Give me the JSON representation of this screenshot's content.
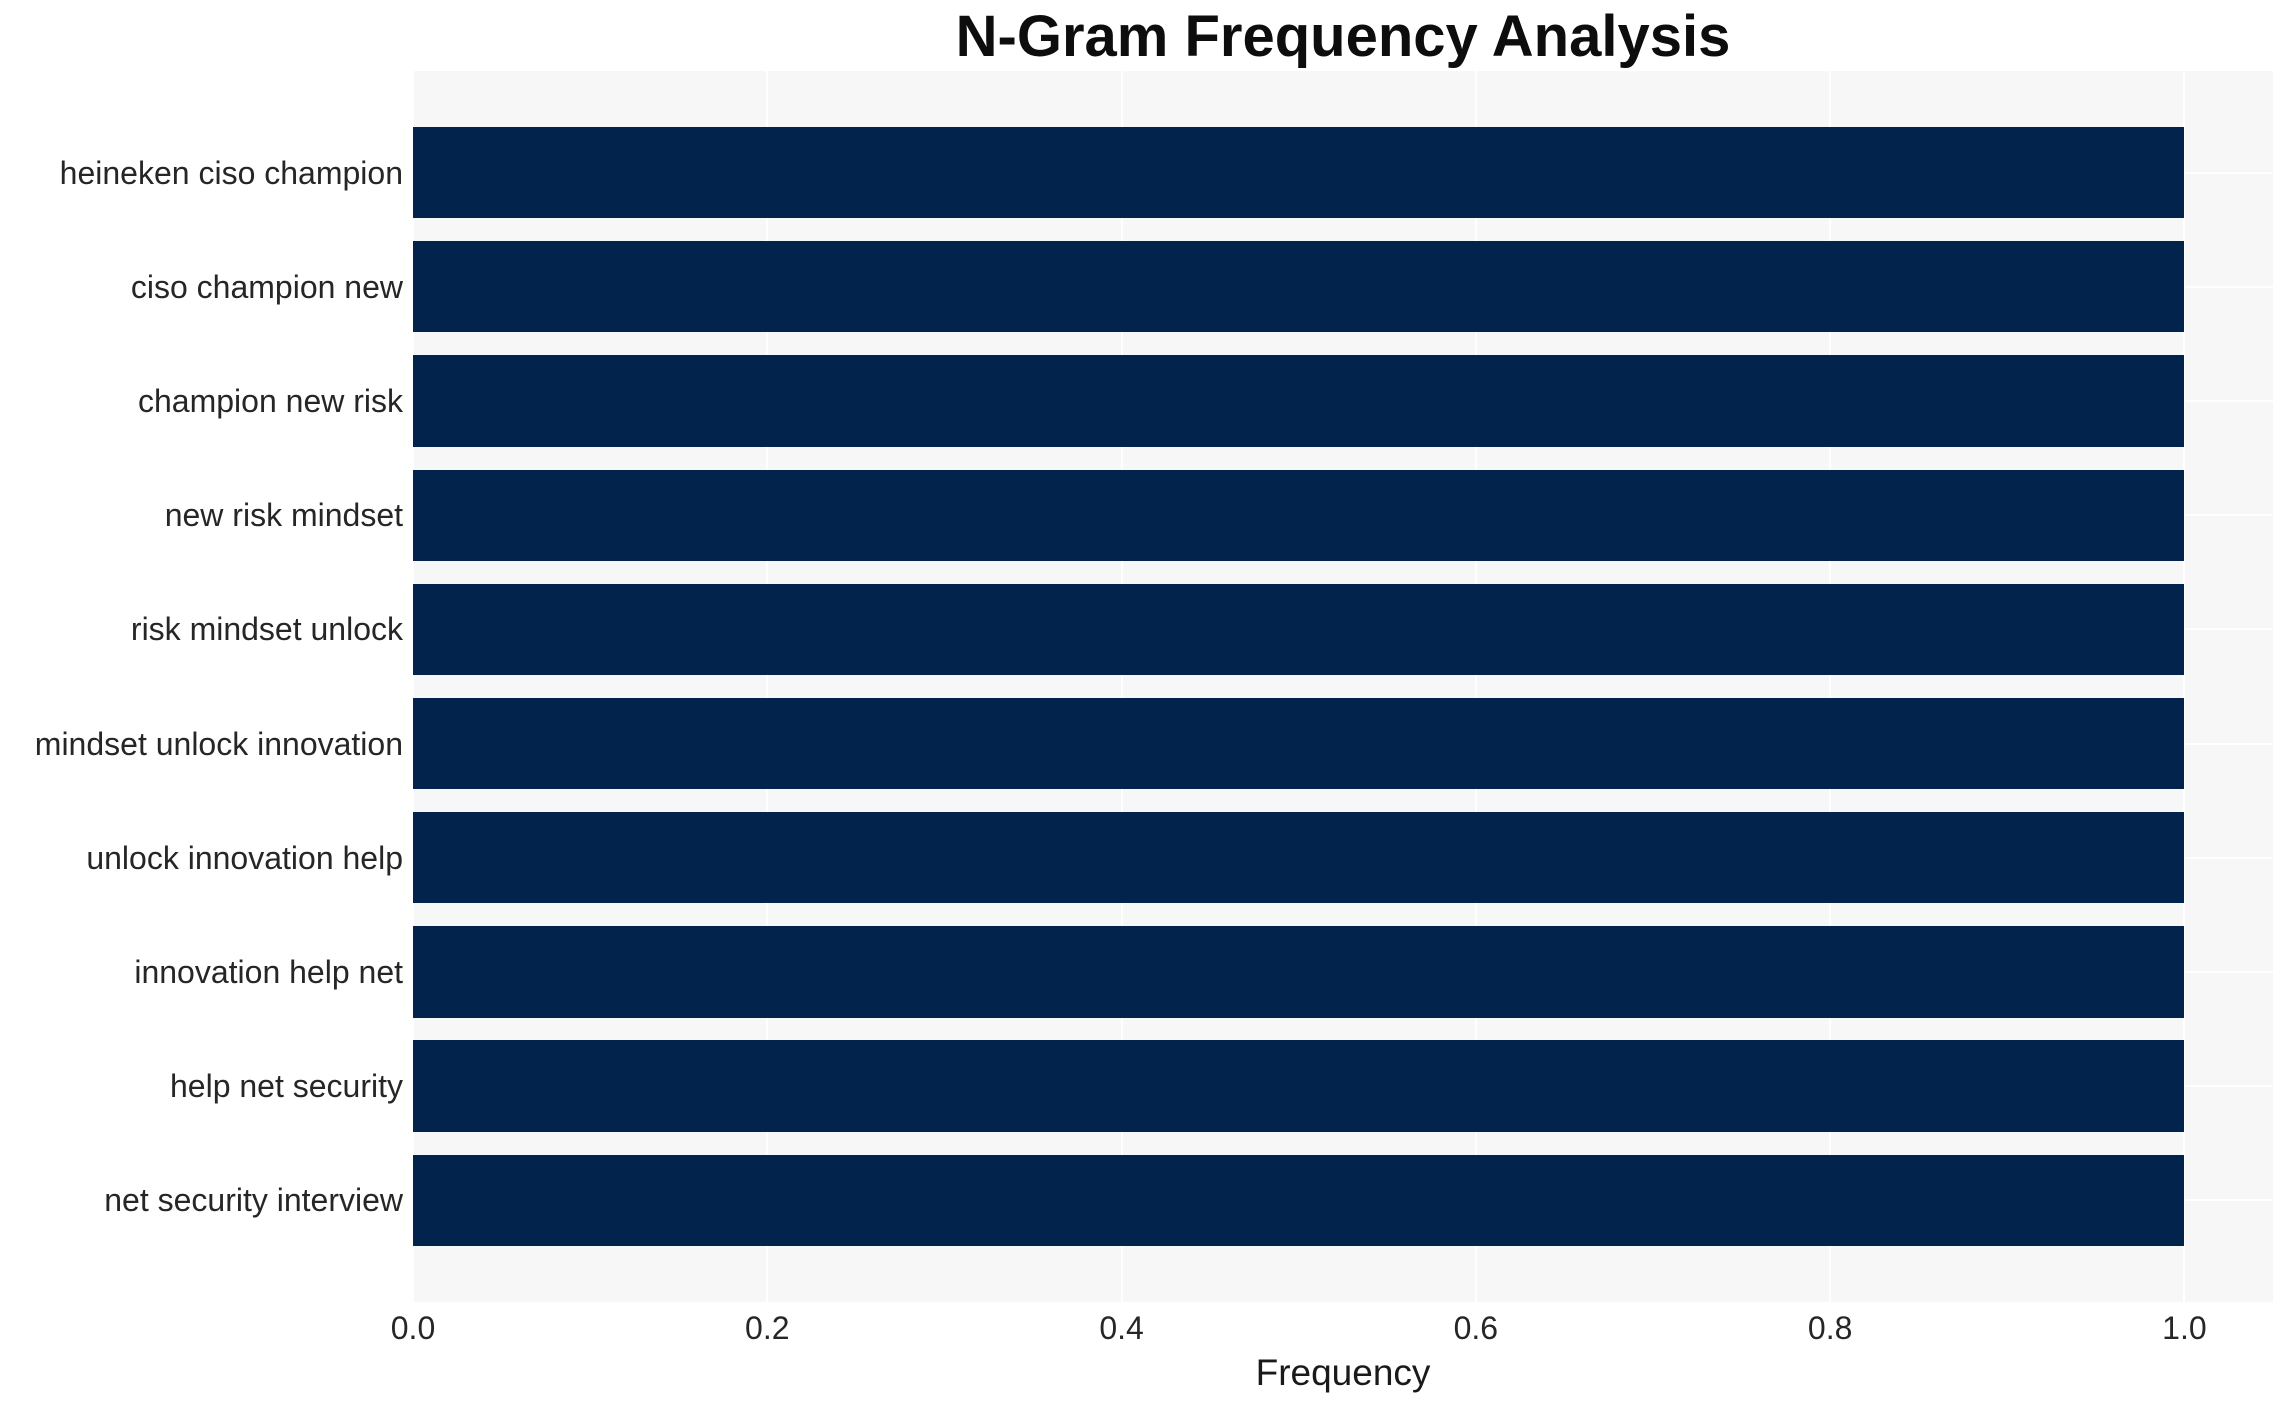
{
  "chart_data": {
    "type": "bar",
    "orientation": "horizontal",
    "title": "N-Gram Frequency Analysis",
    "xlabel": "Frequency",
    "ylabel": "",
    "categories": [
      "heineken ciso champion",
      "ciso champion new",
      "champion new risk",
      "new risk mindset",
      "risk mindset unlock",
      "mindset unlock innovation",
      "unlock innovation help",
      "innovation help net",
      "help net security",
      "net security interview"
    ],
    "values": [
      1.0,
      1.0,
      1.0,
      1.0,
      1.0,
      1.0,
      1.0,
      1.0,
      1.0,
      1.0
    ],
    "xticks": [
      0.0,
      0.2,
      0.4,
      0.6,
      0.8,
      1.0
    ],
    "xtick_labels": [
      "0.0",
      "0.2",
      "0.4",
      "0.6",
      "0.8",
      "1.0"
    ],
    "xlim": [
      0,
      1.05
    ],
    "grid": true,
    "legend": false,
    "colors": {
      "bar": "#02244c",
      "plot_background": "#f7f7f7",
      "figure_background": "#ffffff",
      "gridline": "#ffffff",
      "title_text": "#0d0d0d",
      "tick_text": "#262626",
      "axis_label_text": "#1a1a1a"
    }
  }
}
